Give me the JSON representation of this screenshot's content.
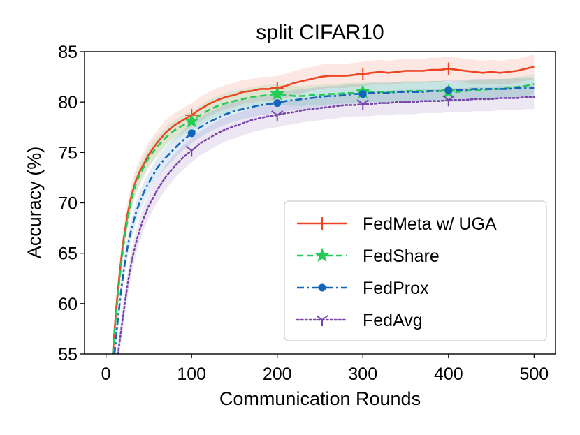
{
  "chart_data": {
    "type": "line",
    "title": "split CIFAR10",
    "xlabel": "Communication Rounds",
    "ylabel": "Accuracy (%)",
    "xlim": [
      -25,
      525
    ],
    "ylim": [
      55,
      85
    ],
    "xticks": [
      0,
      100,
      200,
      300,
      400,
      500
    ],
    "yticks": [
      55,
      60,
      65,
      70,
      75,
      80,
      85
    ],
    "grid": false,
    "legend_position": "lower-right",
    "series": [
      {
        "name": "FedMeta w/ UGA",
        "color": "#ee4422",
        "linestyle": "solid",
        "marker": "plus",
        "marker_x": [
          100,
          200,
          300,
          400
        ],
        "band_halfwidth": 1.2,
        "x": [
          8,
          12,
          16,
          20,
          25,
          30,
          35,
          40,
          45,
          50,
          60,
          70,
          80,
          90,
          100,
          110,
          120,
          130,
          140,
          150,
          160,
          170,
          180,
          190,
          200,
          210,
          220,
          230,
          240,
          250,
          260,
          270,
          280,
          290,
          300,
          310,
          320,
          330,
          340,
          350,
          360,
          370,
          380,
          390,
          400,
          410,
          420,
          430,
          440,
          450,
          460,
          470,
          480,
          490,
          500
        ],
        "y": [
          55.0,
          59.5,
          63.0,
          66.0,
          68.8,
          70.8,
          72.2,
          73.2,
          74.0,
          74.8,
          76.0,
          77.0,
          77.7,
          78.2,
          78.7,
          79.3,
          79.8,
          80.2,
          80.5,
          80.7,
          81.0,
          81.1,
          81.3,
          81.3,
          81.4,
          81.6,
          81.9,
          82.1,
          82.3,
          82.5,
          82.6,
          82.6,
          82.6,
          82.7,
          82.8,
          82.9,
          83.0,
          82.9,
          83.0,
          83.1,
          83.1,
          83.1,
          83.2,
          83.2,
          83.3,
          83.2,
          83.1,
          83.0,
          82.9,
          83.0,
          82.9,
          83.0,
          83.1,
          83.3,
          83.5
        ]
      },
      {
        "name": "FedShare",
        "color": "#22cc55",
        "linestyle": "dashed",
        "marker": "star",
        "marker_x": [
          100,
          200,
          300,
          400
        ],
        "band_halfwidth": 1.0,
        "x": [
          8,
          12,
          16,
          20,
          25,
          30,
          35,
          40,
          45,
          50,
          60,
          70,
          80,
          90,
          100,
          110,
          120,
          130,
          140,
          150,
          160,
          170,
          180,
          190,
          200,
          210,
          220,
          230,
          240,
          250,
          260,
          270,
          280,
          290,
          300,
          310,
          320,
          330,
          340,
          350,
          360,
          370,
          380,
          390,
          400,
          410,
          420,
          430,
          440,
          450,
          460,
          470,
          480,
          490,
          500
        ],
        "y": [
          55.0,
          59.0,
          62.5,
          65.5,
          68.3,
          70.4,
          71.9,
          72.9,
          73.7,
          74.5,
          75.6,
          76.5,
          77.2,
          77.7,
          78.1,
          78.7,
          79.2,
          79.6,
          79.9,
          80.1,
          80.3,
          80.5,
          80.6,
          80.7,
          80.8,
          80.7,
          80.6,
          80.6,
          80.7,
          80.7,
          80.8,
          80.8,
          80.9,
          80.9,
          81.0,
          81.0,
          81.0,
          81.0,
          81.0,
          81.1,
          81.1,
          81.1,
          81.1,
          81.1,
          81.0,
          81.0,
          81.1,
          81.2,
          81.2,
          81.3,
          81.3,
          81.4,
          81.5,
          81.6,
          81.8
        ]
      },
      {
        "name": "FedProx",
        "color": "#1166bb",
        "linestyle": "dashdot",
        "marker": "circle",
        "marker_x": [
          100,
          200,
          300,
          400
        ],
        "band_halfwidth": 1.0,
        "x": [
          10,
          14,
          18,
          22,
          26,
          30,
          35,
          40,
          45,
          50,
          60,
          70,
          80,
          90,
          100,
          110,
          120,
          130,
          140,
          150,
          160,
          170,
          180,
          190,
          200,
          210,
          220,
          230,
          240,
          250,
          260,
          270,
          280,
          290,
          300,
          310,
          320,
          330,
          340,
          350,
          360,
          370,
          380,
          390,
          400,
          410,
          420,
          430,
          440,
          450,
          460,
          470,
          480,
          490,
          500
        ],
        "y": [
          55.0,
          58.5,
          61.5,
          64.0,
          66.0,
          67.5,
          69.0,
          70.2,
          71.2,
          72.0,
          73.5,
          74.5,
          75.4,
          76.2,
          76.9,
          77.5,
          78.0,
          78.4,
          78.8,
          79.1,
          79.3,
          79.5,
          79.7,
          79.8,
          79.9,
          80.1,
          80.2,
          80.3,
          80.4,
          80.5,
          80.6,
          80.6,
          80.7,
          80.8,
          80.8,
          80.9,
          80.9,
          80.9,
          81.0,
          81.0,
          81.0,
          81.0,
          81.1,
          81.1,
          81.2,
          81.2,
          81.2,
          81.3,
          81.3,
          81.3,
          81.3,
          81.3,
          81.4,
          81.4,
          81.4
        ]
      },
      {
        "name": "FedAvg",
        "color": "#7744aa",
        "linestyle": "dotted",
        "marker": "tri_down",
        "marker_x": [
          100,
          200,
          300,
          400
        ],
        "band_halfwidth": 1.2,
        "x": [
          14,
          18,
          22,
          26,
          30,
          35,
          40,
          45,
          50,
          60,
          70,
          80,
          90,
          100,
          110,
          120,
          130,
          140,
          150,
          160,
          170,
          180,
          190,
          200,
          210,
          220,
          230,
          240,
          250,
          260,
          270,
          280,
          290,
          300,
          310,
          320,
          330,
          340,
          350,
          360,
          370,
          380,
          390,
          400,
          410,
          420,
          430,
          440,
          450,
          460,
          470,
          480,
          490,
          500
        ],
        "y": [
          55.0,
          57.5,
          60.0,
          62.3,
          64.2,
          66.0,
          67.5,
          68.7,
          69.7,
          71.3,
          72.6,
          73.6,
          74.5,
          75.2,
          75.9,
          76.4,
          76.9,
          77.3,
          77.6,
          77.9,
          78.2,
          78.4,
          78.6,
          78.7,
          78.9,
          79.0,
          79.2,
          79.3,
          79.4,
          79.5,
          79.6,
          79.7,
          79.7,
          79.8,
          79.8,
          79.9,
          79.9,
          80.0,
          80.0,
          80.0,
          80.1,
          80.1,
          80.1,
          80.2,
          80.2,
          80.2,
          80.3,
          80.3,
          80.3,
          80.4,
          80.4,
          80.4,
          80.5,
          80.5
        ]
      }
    ]
  }
}
